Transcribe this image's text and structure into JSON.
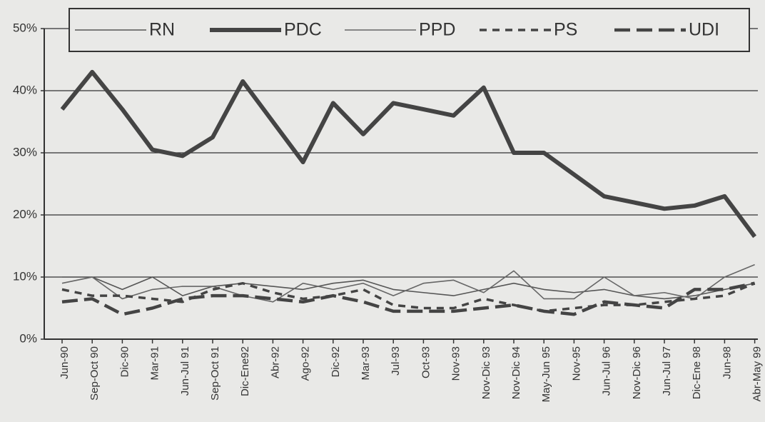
{
  "chart_data": {
    "type": "line",
    "categories": [
      "Jun-90",
      "Sep-Oct 90",
      "Dic-90",
      "Mar-91",
      "Jun-Jul 91",
      "Sep-Oct 91",
      "Dic-Ene92",
      "Abr-92",
      "Ago-92",
      "Dic-92",
      "Mar-93",
      "Jul-93",
      "Oct-93",
      "Nov-93",
      "Nov-Dic 93",
      "Nov-Dic 94",
      "May-Jun 95",
      "Nov-95",
      "Jun-Jul 96",
      "Nov-Dic 96",
      "Jun-Jul 97",
      "Dic-Ene 98",
      "Jun-98",
      "Abr-May 99"
    ],
    "series": [
      {
        "name": "RN",
        "color": "#555555",
        "line_style": "solid",
        "values": [
          10,
          10,
          8,
          10,
          7,
          8.5,
          9,
          8.5,
          8,
          9,
          9.5,
          8,
          7.5,
          7,
          8,
          9,
          8,
          7.5,
          8,
          7,
          6.5,
          7,
          8,
          9
        ]
      },
      {
        "name": "PDC",
        "color": "#444444",
        "line_style": "bold",
        "values": [
          37,
          43,
          37,
          30.5,
          29.5,
          32.5,
          41.5,
          35,
          28.5,
          38,
          33,
          38,
          37,
          36,
          40.5,
          30,
          30,
          26.5,
          23,
          22,
          21,
          21.5,
          23,
          16.5
        ]
      },
      {
        "name": "PPD",
        "color": "#666666",
        "line_style": "solid",
        "values": [
          9,
          10,
          6.5,
          8,
          8.5,
          8.5,
          7,
          6,
          9,
          8,
          9,
          7,
          9,
          9.5,
          7.5,
          11,
          6.5,
          6.5,
          10,
          7,
          7.5,
          6.5,
          10,
          12
        ]
      },
      {
        "name": "PS",
        "color": "#444444",
        "line_style": "dashed",
        "values": [
          8,
          7,
          7,
          6.5,
          6,
          8,
          9,
          7.5,
          6.5,
          7,
          8,
          5.5,
          5,
          5,
          6.5,
          5.5,
          4.5,
          5,
          5.5,
          5.5,
          6,
          6.5,
          7,
          9
        ]
      },
      {
        "name": "UDI",
        "color": "#444444",
        "line_style": "longdash",
        "values": [
          6,
          6.5,
          4,
          5,
          6.5,
          7,
          7,
          6.5,
          6,
          7,
          6,
          4.5,
          4.5,
          4.5,
          5,
          5.5,
          4.5,
          4,
          6,
          5.5,
          5,
          8,
          8,
          9
        ]
      }
    ],
    "ylim": [
      0,
      50
    ],
    "yticks": [
      {
        "value": 0,
        "label": "0%"
      },
      {
        "value": 10,
        "label": "10%"
      },
      {
        "value": 20,
        "label": "20%"
      },
      {
        "value": 30,
        "label": "30%"
      },
      {
        "value": 40,
        "label": "40%"
      },
      {
        "value": 50,
        "label": "50%"
      }
    ],
    "grid": true,
    "legend": "top"
  }
}
